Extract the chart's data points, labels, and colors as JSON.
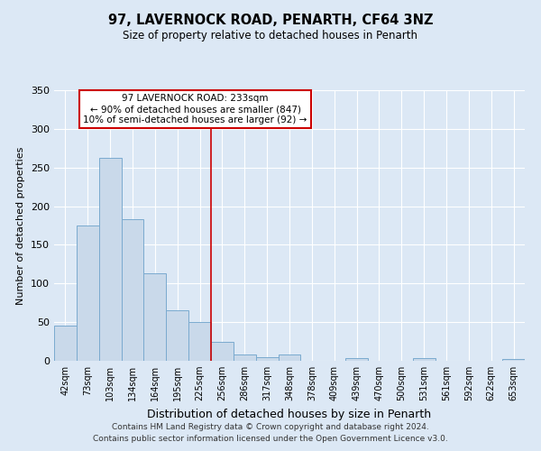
{
  "title": "97, LAVERNOCK ROAD, PENARTH, CF64 3NZ",
  "subtitle": "Size of property relative to detached houses in Penarth",
  "xlabel": "Distribution of detached houses by size in Penarth",
  "ylabel": "Number of detached properties",
  "bar_labels": [
    "42sqm",
    "73sqm",
    "103sqm",
    "134sqm",
    "164sqm",
    "195sqm",
    "225sqm",
    "256sqm",
    "286sqm",
    "317sqm",
    "348sqm",
    "378sqm",
    "409sqm",
    "439sqm",
    "470sqm",
    "500sqm",
    "531sqm",
    "561sqm",
    "592sqm",
    "622sqm",
    "653sqm"
  ],
  "bar_values": [
    45,
    175,
    262,
    183,
    113,
    65,
    50,
    24,
    8,
    5,
    8,
    0,
    0,
    4,
    0,
    0,
    3,
    0,
    0,
    0,
    2
  ],
  "bar_color": "#c9d9ea",
  "bar_edge_color": "#7aaacf",
  "vline_x": 6.5,
  "vline_color": "#cc0000",
  "annotation_title": "97 LAVERNOCK ROAD: 233sqm",
  "annotation_line1": "← 90% of detached houses are smaller (847)",
  "annotation_line2": "10% of semi-detached houses are larger (92) →",
  "annotation_box_color": "#ffffff",
  "annotation_box_edge": "#cc0000",
  "ylim": [
    0,
    350
  ],
  "yticks": [
    0,
    50,
    100,
    150,
    200,
    250,
    300,
    350
  ],
  "footer1": "Contains HM Land Registry data © Crown copyright and database right 2024.",
  "footer2": "Contains public sector information licensed under the Open Government Licence v3.0.",
  "background_color": "#dce8f5",
  "plot_bg_color": "#dce8f5",
  "grid_color": "#ffffff"
}
